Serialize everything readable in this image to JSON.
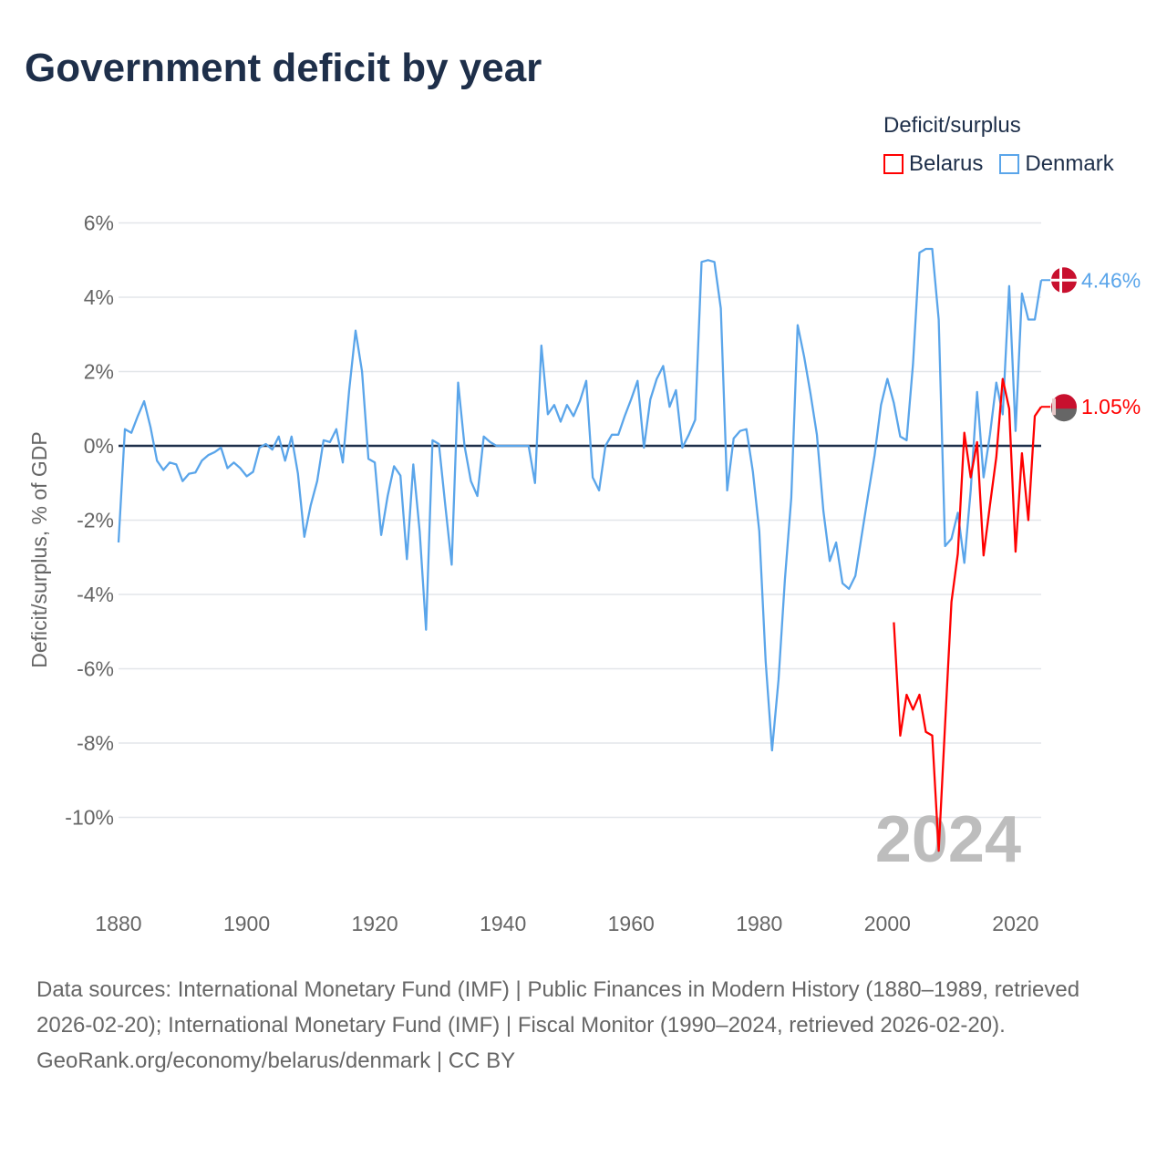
{
  "title": "Government deficit by year",
  "legend": {
    "title": "Deficit/surplus",
    "items": [
      {
        "name": "Belarus",
        "color": "#ff0000"
      },
      {
        "name": "Denmark",
        "color": "#5aa5ea"
      }
    ]
  },
  "year_watermark": "2024",
  "footer": {
    "sources": "Data sources: International Monetary Fund (IMF) | Public Finances in Modern History (1880–1989, retrieved 2026-02-20); International Monetary Fund (IMF) | Fiscal Monitor (1990–2024, retrieved 2026-02-20).",
    "credit": "GeoRank.org/economy/belarus/denmark | CC BY"
  },
  "chart_data": {
    "type": "line",
    "title": "Government deficit by year",
    "xlabel": "",
    "ylabel": "Deficit/surplus, % of GDP",
    "xlim": [
      1880,
      2024
    ],
    "ylim": [
      -12,
      6
    ],
    "x_ticks": [
      1880,
      1900,
      1920,
      1940,
      1960,
      1980,
      2000,
      2020
    ],
    "x_tick_labels": [
      "1880",
      "1900",
      "1920",
      "1940",
      "1960",
      "1980",
      "2000",
      "2020"
    ],
    "y_ticks": [
      6,
      4,
      2,
      0,
      -2,
      -4,
      -6,
      -8,
      -10
    ],
    "y_tick_labels": [
      "6%",
      "4%",
      "2%",
      "0%",
      "-2%",
      "-4%",
      "-6%",
      "-8%",
      "-10%"
    ],
    "grid": true,
    "legend_position": "top-right",
    "series": [
      {
        "name": "Denmark",
        "color": "#5aa5ea",
        "end_label": "4.46%",
        "start_year": 1880,
        "values": [
          -2.6,
          0.45,
          0.35,
          0.8,
          1.2,
          0.5,
          -0.4,
          -0.65,
          -0.45,
          -0.5,
          -0.95,
          -0.75,
          -0.72,
          -0.4,
          -0.25,
          -0.17,
          -0.05,
          -0.6,
          -0.45,
          -0.6,
          -0.82,
          -0.7,
          -0.05,
          0.05,
          -0.1,
          0.25,
          -0.4,
          0.25,
          -0.75,
          -2.45,
          -1.6,
          -0.95,
          0.15,
          0.1,
          0.45,
          -0.45,
          1.5,
          3.1,
          2.0,
          -0.35,
          -0.45,
          -2.4,
          -1.35,
          -0.55,
          -0.8,
          -3.05,
          -0.5,
          -2.3,
          -4.95,
          0.15,
          0.05,
          -1.6,
          -3.2,
          1.7,
          0.0,
          -0.95,
          -1.35,
          0.25,
          0.1,
          0,
          0,
          0,
          0,
          0,
          0,
          -1.0,
          2.7,
          0.85,
          1.1,
          0.65,
          1.1,
          0.8,
          1.2,
          1.75,
          -0.85,
          -1.2,
          0.0,
          0.3,
          0.3,
          0.8,
          1.25,
          1.75,
          -0.05,
          1.25,
          1.8,
          2.15,
          1.05,
          1.5,
          -0.05,
          0.3,
          0.7,
          4.95,
          5.0,
          4.95,
          3.7,
          -1.2,
          0.2,
          0.4,
          0.45,
          -0.7,
          -2.3,
          -5.8,
          -8.2,
          -6.3,
          -3.6,
          -1.4,
          3.25,
          2.4,
          1.4,
          0.3,
          -1.75,
          -3.1,
          -2.6,
          -3.7,
          -3.85,
          -3.5,
          -2.4,
          -1.3,
          -0.25,
          1.1,
          1.8,
          1.15,
          0.25,
          0.15,
          2.2,
          5.2,
          5.3,
          5.3,
          3.4,
          -2.7,
          -2.5,
          -1.8,
          -3.15,
          -1.2,
          1.45,
          -0.85,
          0.3,
          1.7,
          0.85,
          4.3,
          0.4,
          4.1,
          3.4,
          3.4,
          4.46
        ]
      },
      {
        "name": "Belarus",
        "color": "#ff0000",
        "end_label": "1.05%",
        "start_year": 2001,
        "values": [
          -4.75,
          -7.8,
          -6.7,
          -7.1,
          -6.7,
          -7.7,
          -7.8,
          -10.9,
          -7.5,
          -4.2,
          -2.9,
          0.35,
          -0.85,
          0.1,
          -2.95,
          -1.6,
          -0.3,
          1.8,
          1.0,
          -2.85,
          -0.2,
          -2.0,
          0.8,
          1.05
        ]
      }
    ]
  }
}
